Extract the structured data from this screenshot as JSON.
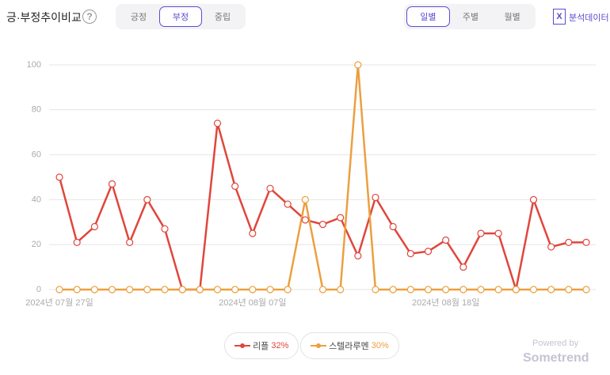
{
  "header": {
    "title": "긍·부정추이비교",
    "help": "?",
    "sentiment_tabs": [
      "긍정",
      "부정",
      "중립"
    ],
    "period_tabs": [
      "일별",
      "주별",
      "월별"
    ],
    "export": "분석데이터"
  },
  "chart_data": {
    "type": "line",
    "categories": [
      "2024년 07월 27일",
      null,
      null,
      null,
      null,
      null,
      null,
      null,
      null,
      null,
      null,
      "2024년 08월 07일",
      null,
      null,
      null,
      null,
      null,
      null,
      null,
      null,
      null,
      null,
      "2024년 08월 18일",
      null,
      null,
      null,
      null,
      null,
      null,
      null,
      null
    ],
    "series": [
      {
        "name": "리플",
        "share": "32%",
        "color": "#e0463c",
        "values": [
          50,
          21,
          28,
          47,
          21,
          40,
          27,
          0,
          0,
          74,
          46,
          25,
          45,
          38,
          31,
          29,
          32,
          15,
          41,
          28,
          16,
          17,
          22,
          10,
          25,
          25,
          0,
          40,
          19,
          21,
          21
        ]
      },
      {
        "name": "스텔라루멘",
        "share": "30%",
        "color": "#eba040",
        "values": [
          0,
          0,
          0,
          0,
          0,
          0,
          0,
          0,
          0,
          0,
          0,
          0,
          0,
          0,
          40,
          0,
          0,
          100,
          0,
          0,
          0,
          0,
          0,
          0,
          0,
          0,
          0,
          0,
          0,
          0,
          0
        ]
      }
    ],
    "ylim": [
      0,
      100
    ],
    "yticks": [
      0,
      20,
      40,
      60,
      80,
      100
    ],
    "grid": true
  },
  "footer": {
    "powered": "Powered by",
    "brand": "Sometrend"
  }
}
